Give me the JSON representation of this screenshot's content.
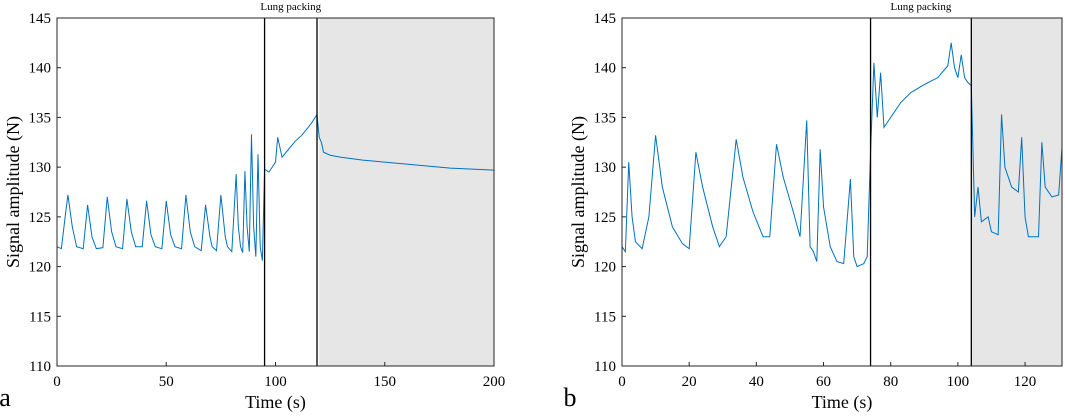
{
  "chart_data": [
    {
      "type": "line",
      "panel_label": "a",
      "annotation": "Lung packing",
      "xlabel": "Time (s)",
      "ylabel": "Signal amplitude (N)",
      "color": "#0072bd",
      "xlim": [
        0,
        200
      ],
      "ylim": [
        110,
        145
      ],
      "xticks": [
        0,
        50,
        100,
        150,
        200
      ],
      "yticks": [
        110,
        115,
        120,
        125,
        130,
        135,
        140,
        145
      ],
      "vlines": [
        95,
        119
      ],
      "shaded": [
        120,
        200
      ],
      "shade_color": "#e6e6e6",
      "x": [
        0,
        2,
        4,
        5,
        7,
        9,
        12,
        14,
        16,
        18,
        21,
        23,
        25,
        27,
        30,
        32,
        34,
        36,
        39,
        41,
        43,
        45,
        48,
        50,
        52,
        54,
        57,
        59,
        61,
        63,
        66,
        68,
        70,
        71,
        73,
        75,
        77,
        78,
        80,
        82,
        83,
        84,
        85,
        86,
        87,
        88,
        89,
        90,
        91,
        92,
        93,
        94,
        95,
        97,
        100,
        101,
        103,
        106,
        109,
        112,
        115,
        117,
        119,
        120,
        121,
        122,
        125,
        130,
        140,
        150,
        160,
        170,
        180,
        190,
        200
      ],
      "values": [
        122,
        121.8,
        125.5,
        127.2,
        124,
        122,
        121.8,
        126.2,
        123,
        121.8,
        121.9,
        127,
        123.5,
        122,
        121.8,
        126.8,
        123.5,
        122,
        122,
        126.6,
        123.2,
        122,
        121.8,
        126.6,
        123.2,
        122,
        121.8,
        127.2,
        123.5,
        122,
        121.6,
        126.2,
        123,
        122,
        121.6,
        127.2,
        123,
        122,
        121.5,
        129.3,
        124,
        122,
        121.4,
        129.6,
        124,
        121.5,
        133.3,
        124,
        121,
        131.3,
        122,
        120.6,
        129.8,
        129.5,
        130.5,
        133,
        131,
        131.8,
        132.6,
        133.2,
        134,
        134.6,
        135.3,
        133,
        132.5,
        131.5,
        131.2,
        131,
        130.7,
        130.5,
        130.3,
        130.1,
        129.9,
        129.8,
        129.7
      ]
    },
    {
      "type": "line",
      "panel_label": "b",
      "annotation": "Lung packing",
      "xlabel": "Time (s)",
      "ylabel": "Signal amplitude (N)",
      "color": "#0072bd",
      "xlim": [
        0,
        131
      ],
      "ylim": [
        110,
        145
      ],
      "xticks": [
        0,
        20,
        40,
        60,
        80,
        100,
        120
      ],
      "yticks": [
        110,
        115,
        120,
        125,
        130,
        135,
        140,
        145
      ],
      "vlines": [
        74,
        104
      ],
      "shaded": [
        104,
        131
      ],
      "shade_color": "#e6e6e6",
      "x": [
        0,
        1,
        2,
        3,
        4,
        6,
        8,
        10,
        12,
        15,
        18,
        20,
        22,
        24,
        27,
        29,
        31,
        34,
        36,
        39,
        42,
        44,
        46,
        48,
        51,
        53,
        55,
        56,
        57,
        58,
        59,
        60,
        62,
        64,
        66,
        68,
        69,
        70,
        72,
        73,
        74,
        75,
        76,
        77,
        78,
        79,
        80,
        83,
        86,
        90,
        94,
        97,
        98,
        99,
        100,
        101,
        102,
        103,
        104,
        105,
        106,
        107,
        109,
        110,
        112,
        113,
        114,
        116,
        118,
        119,
        120,
        121,
        124,
        125,
        126,
        128,
        130,
        131
      ],
      "values": [
        122,
        121.5,
        130.5,
        125,
        122.5,
        121.8,
        125,
        133.2,
        128,
        124,
        122.3,
        121.8,
        131.5,
        128,
        124,
        122,
        123,
        132.8,
        129,
        125.5,
        123,
        123,
        132.3,
        129,
        125.5,
        123,
        134.7,
        122,
        121.5,
        120.5,
        131.8,
        126,
        122,
        120.5,
        120.3,
        128.8,
        121,
        120,
        120.3,
        121,
        131.5,
        140.5,
        135,
        139.5,
        134,
        134.5,
        135,
        136.5,
        137.5,
        138.3,
        139,
        140.2,
        142.5,
        140,
        139,
        141.3,
        139,
        138.5,
        138.2,
        125,
        128,
        124.5,
        125,
        123.5,
        123.2,
        135.3,
        130,
        128,
        127.5,
        133,
        125,
        123,
        123,
        132.5,
        128,
        127,
        127.2,
        132
      ]
    }
  ]
}
